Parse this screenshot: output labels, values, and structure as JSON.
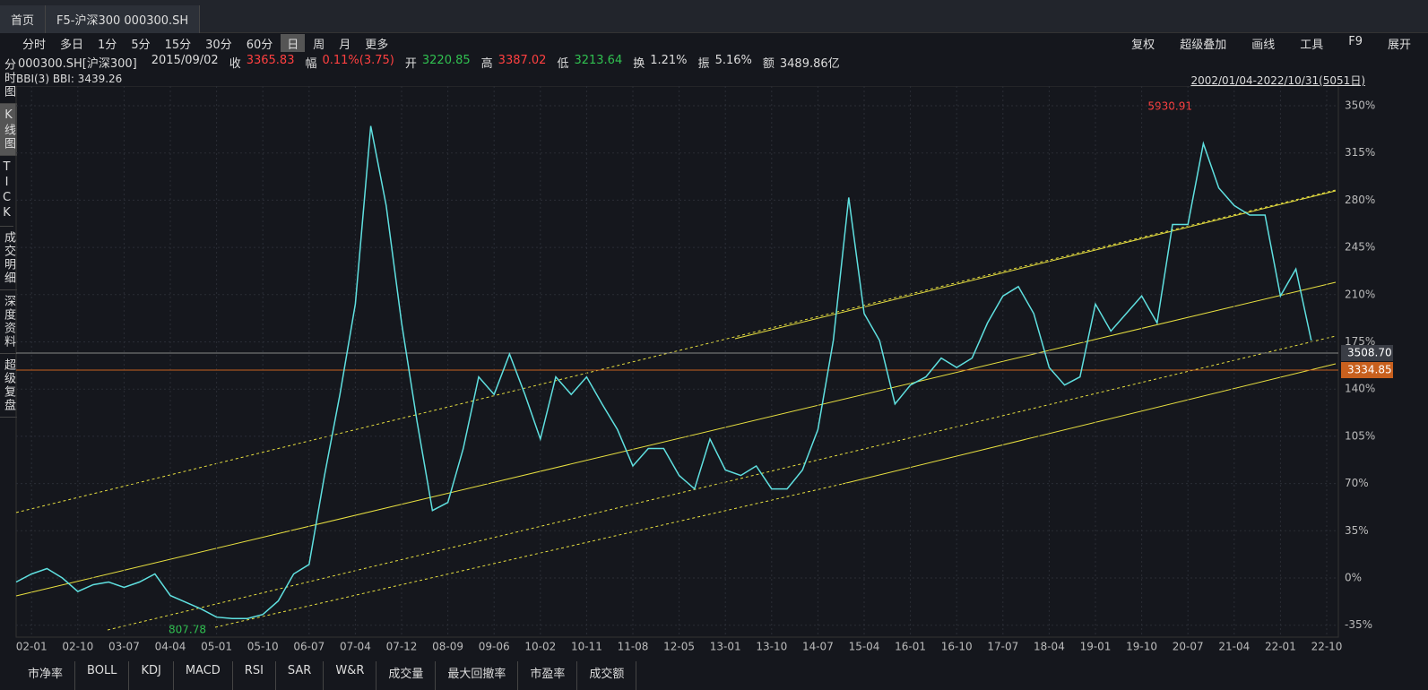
{
  "tabs": [
    "首页",
    "F5-沪深300 000300.SH"
  ],
  "periods": [
    "分时",
    "多日",
    "1分",
    "5分",
    "15分",
    "30分",
    "60分",
    "日",
    "周",
    "月",
    "更多"
  ],
  "tools": [
    "复权",
    "超级叠加",
    "画线",
    "工具",
    "F9",
    "展开"
  ],
  "quote": {
    "code": "000300.SH[沪深300]",
    "date": "2015/09/02",
    "fields": [
      {
        "label": "收",
        "value": "3365.83",
        "color": "#ff4040"
      },
      {
        "label": "幅",
        "value": "0.11%(3.75)",
        "color": "#ff4040"
      },
      {
        "label": "开",
        "value": "3220.85",
        "color": "#30c050"
      },
      {
        "label": "高",
        "value": "3387.02",
        "color": "#ff4040"
      },
      {
        "label": "低",
        "value": "3213.64",
        "color": "#30c050"
      },
      {
        "label": "换",
        "value": "1.21%",
        "color": "#dddddd"
      },
      {
        "label": "振",
        "value": "5.16%",
        "color": "#dddddd"
      },
      {
        "label": "额",
        "value": "3489.86亿",
        "color": "#dddddd"
      }
    ]
  },
  "indicator": "BBI(3) BBI: 3439.26",
  "range": "2002/01/04-2022/10/31(5051日)",
  "sidebar": [
    "分时图",
    "K线图",
    "TICK",
    "成交明细",
    "深度资料",
    "超级复盘"
  ],
  "bottom_tabs": [
    "市净率",
    "BOLL",
    "KDJ",
    "MACD",
    "RSI",
    "SAR",
    "W&R",
    "成交量",
    "最大回撤率",
    "市盈率",
    "成交额"
  ],
  "price_lines": [
    {
      "label": "3508.70",
      "color": "#888888"
    },
    {
      "label": "3334.85",
      "color": "#c8601e"
    }
  ],
  "chart_data": {
    "type": "line",
    "categories": [
      null,
      "02-01",
      null,
      null,
      "02-10",
      null,
      null,
      "03-07",
      null,
      null,
      "04-04",
      null,
      null,
      "05-01",
      null,
      null,
      "05-10",
      null,
      null,
      "06-07",
      null,
      null,
      "07-04",
      null,
      null,
      "07-12",
      null,
      null,
      "08-09",
      null,
      null,
      "09-06",
      null,
      null,
      "10-02",
      null,
      null,
      "10-11",
      null,
      null,
      "11-08",
      null,
      null,
      "12-05",
      null,
      null,
      "13-01",
      null,
      null,
      "13-10",
      null,
      null,
      "14-07",
      null,
      null,
      "15-04",
      null,
      null,
      "16-01",
      null,
      null,
      "16-10",
      null,
      null,
      "17-07",
      null,
      null,
      "18-04",
      null,
      null,
      "19-01",
      null,
      null,
      "19-10",
      null,
      null,
      "20-07",
      null,
      null,
      "21-04",
      null,
      null,
      "22-01",
      null,
      null,
      "22-10"
    ],
    "series": [
      {
        "color": "#5fe0e0",
        "values": [
          -3,
          3,
          7,
          0,
          -10,
          -5,
          -3,
          -7,
          -3,
          3,
          -13,
          -18,
          -23,
          -29,
          -30,
          -30,
          -27,
          -17,
          3,
          10,
          76,
          136,
          203,
          335,
          276,
          189,
          116,
          50,
          56,
          96,
          149,
          136,
          166,
          136,
          103,
          149,
          136,
          149,
          129,
          110,
          83,
          96,
          96,
          76,
          66,
          103,
          80,
          76,
          83,
          66,
          66,
          80,
          110,
          176,
          282,
          196,
          176,
          129,
          143,
          149,
          163,
          156,
          163,
          189,
          209,
          216,
          196,
          156,
          143,
          149,
          203,
          183,
          196,
          209,
          189,
          262,
          262,
          322,
          289,
          276,
          269,
          269,
          209,
          229,
          176,
          null
        ]
      }
    ],
    "ylim": [
      -35,
      350
    ],
    "yticks": [
      {
        "value": -35,
        "label": "-35%"
      },
      {
        "value": 0,
        "label": "0%"
      },
      {
        "value": 35,
        "label": "35%"
      },
      {
        "value": 70,
        "label": "70%"
      },
      {
        "value": 105,
        "label": "105%"
      },
      {
        "value": 140,
        "label": "140%"
      },
      {
        "value": 175,
        "label": "175%"
      },
      {
        "value": 210,
        "label": "210%"
      },
      {
        "value": 245,
        "label": "245%"
      },
      {
        "value": 280,
        "label": "280%"
      },
      {
        "value": 315,
        "label": "315%"
      },
      {
        "value": 350,
        "label": "350%"
      }
    ],
    "grid": true,
    "annotations": {
      "max": "5930.91",
      "min": "807.78"
    }
  }
}
